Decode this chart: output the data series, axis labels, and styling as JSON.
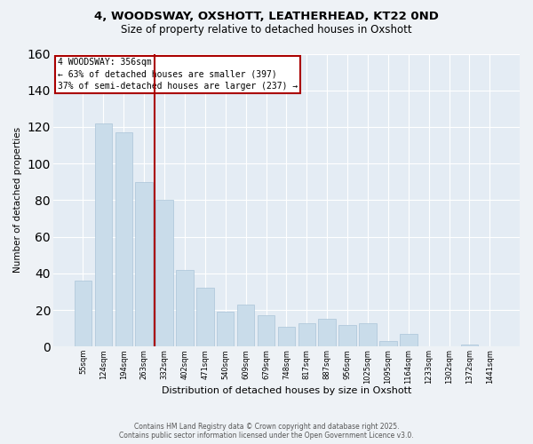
{
  "title1": "4, WOODSWAY, OXSHOTT, LEATHERHEAD, KT22 0ND",
  "title2": "Size of property relative to detached houses in Oxshott",
  "xlabel": "Distribution of detached houses by size in Oxshott",
  "ylabel": "Number of detached properties",
  "categories": [
    "55sqm",
    "124sqm",
    "194sqm",
    "263sqm",
    "332sqm",
    "402sqm",
    "471sqm",
    "540sqm",
    "609sqm",
    "679sqm",
    "748sqm",
    "817sqm",
    "887sqm",
    "956sqm",
    "1025sqm",
    "1095sqm",
    "1164sqm",
    "1233sqm",
    "1302sqm",
    "1372sqm",
    "1441sqm"
  ],
  "values": [
    36,
    122,
    117,
    90,
    80,
    42,
    32,
    19,
    23,
    17,
    11,
    13,
    15,
    12,
    13,
    3,
    7,
    0,
    0,
    1,
    0
  ],
  "bar_color": "#c9dcea",
  "bar_edge_color": "#aac4d8",
  "highlight_index": 4,
  "highlight_color": "#aa0000",
  "annotation_title": "4 WOODSWAY: 356sqm",
  "annotation_line1": "← 63% of detached houses are smaller (397)",
  "annotation_line2": "37% of semi-detached houses are larger (237) →",
  "footer1": "Contains HM Land Registry data © Crown copyright and database right 2025.",
  "footer2": "Contains public sector information licensed under the Open Government Licence v3.0.",
  "ylim": [
    0,
    160
  ],
  "bg_color": "#eef2f6",
  "plot_bg_color": "#e4ecf4"
}
